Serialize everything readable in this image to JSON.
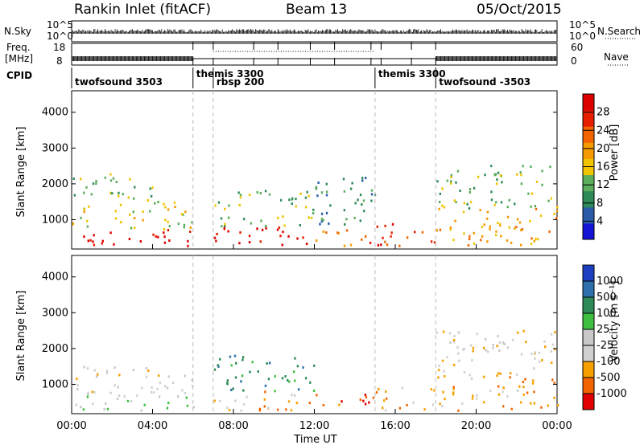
{
  "header": {
    "station": "Rankin Inlet (fitACF)",
    "beam": "Beam 13",
    "date": "05/Oct/2015"
  },
  "status_panel": {
    "nsky_label": "N.Sky",
    "nsky_ticks": [
      "10^5",
      "10^0"
    ],
    "nsearch_label": "N.Search",
    "freq_label": "Freq.",
    "freq_unit": "[MHz]",
    "freq_ticks": [
      "18",
      "8"
    ],
    "nave_label": "Nave",
    "nave_ticks": [
      "60",
      "0"
    ],
    "cpid_label": "CPID",
    "cpid_segments": [
      {
        "start": 0.0,
        "end": 6.0,
        "label": "twofsound 3503"
      },
      {
        "start": 6.0,
        "end": 7.0,
        "label": "themis 3300"
      },
      {
        "start": 7.0,
        "end": 15.0,
        "label": "rbsp 200"
      },
      {
        "start": 15.0,
        "end": 18.0,
        "label": "themis 3300"
      },
      {
        "start": 18.0,
        "end": 24.0,
        "label": "twofsound -3503"
      }
    ]
  },
  "colors": {
    "power": [
      "#1414d4",
      "#2a5caa",
      "#2e8b57",
      "#5cae5c",
      "#f0c400",
      "#f59a00",
      "#f26400",
      "#e61e00",
      "#dd0000"
    ],
    "velocity": [
      "#e00000",
      "#f26400",
      "#f5a000",
      "#d0d0d0",
      "#c8c8c8",
      "#3fbf3f",
      "#2e8b57",
      "#2e6fad",
      "#1e3fbf"
    ]
  },
  "chart_data": [
    {
      "type": "heatmap",
      "panel": "power",
      "ylabel": "Slant Range [km]",
      "xlabel": "Time UT",
      "xlim": [
        0,
        24
      ],
      "ylim": [
        180,
        4600
      ],
      "yticks": [
        "1000",
        "2000",
        "3000",
        "4000"
      ],
      "xticks": [
        "00:00",
        "04:00",
        "08:00",
        "12:00",
        "16:00",
        "20:00",
        "00:00"
      ],
      "colorbar": {
        "label": "Power [dB]",
        "ticks": [
          "4",
          "8",
          "12",
          "16",
          "20",
          "24",
          "28"
        ]
      },
      "regions": [
        {
          "t0": 0.0,
          "t1": 6.0,
          "r0": 250,
          "r1": 700,
          "level": 8
        },
        {
          "t0": 0.0,
          "t1": 6.0,
          "r0": 700,
          "r1": 1500,
          "level": 4
        },
        {
          "t0": 0.0,
          "t1": 4.0,
          "r0": 1500,
          "r1": 2300,
          "level": 3
        },
        {
          "t0": 7.0,
          "t1": 12.0,
          "r0": 250,
          "r1": 800,
          "level": 8
        },
        {
          "t0": 7.0,
          "t1": 12.0,
          "r0": 800,
          "r1": 1800,
          "level": 3
        },
        {
          "t0": 12.0,
          "t1": 15.0,
          "r0": 250,
          "r1": 700,
          "level": 6
        },
        {
          "t0": 12.0,
          "t1": 15.0,
          "r0": 700,
          "r1": 2200,
          "level": 2
        },
        {
          "t0": 15.0,
          "t1": 18.0,
          "r0": 250,
          "r1": 900,
          "level": 7
        },
        {
          "t0": 18.0,
          "t1": 24.0,
          "r0": 250,
          "r1": 1300,
          "level": 5
        },
        {
          "t0": 18.0,
          "t1": 24.0,
          "r0": 1300,
          "r1": 2500,
          "level": 3
        }
      ],
      "markers": [
        6.0,
        7.0,
        15.0,
        18.0
      ]
    },
    {
      "type": "heatmap",
      "panel": "velocity",
      "ylabel": "Slant Range [km]",
      "xlabel": "Time UT",
      "xlim": [
        0,
        24
      ],
      "ylim": [
        180,
        4600
      ],
      "yticks": [
        "1000",
        "2000",
        "3000",
        "4000"
      ],
      "xticks": [
        "00:00",
        "04:00",
        "08:00",
        "12:00",
        "16:00",
        "20:00",
        "00:00"
      ],
      "colorbar": {
        "label": "Velocity [m s⁻¹]",
        "ticks": [
          "1000",
          "500",
          "100",
          "25",
          "-25",
          "-100",
          "-500",
          "-1000"
        ]
      },
      "regions": [
        {
          "t0": 0.0,
          "t1": 6.0,
          "r0": 250,
          "r1": 700,
          "level": 4
        },
        {
          "t0": 0.0,
          "t1": 6.0,
          "r0": 700,
          "r1": 1500,
          "level": 3
        },
        {
          "t0": 7.0,
          "t1": 12.0,
          "r0": 250,
          "r1": 800,
          "level": 2
        },
        {
          "t0": 7.0,
          "t1": 12.0,
          "r0": 800,
          "r1": 1800,
          "level": 6
        },
        {
          "t0": 12.0,
          "t1": 15.0,
          "r0": 250,
          "r1": 700,
          "level": 1
        },
        {
          "t0": 15.0,
          "t1": 18.0,
          "r0": 250,
          "r1": 900,
          "level": 2
        },
        {
          "t0": 18.0,
          "t1": 24.0,
          "r0": 250,
          "r1": 1300,
          "level": 2
        },
        {
          "t0": 18.0,
          "t1": 24.0,
          "r0": 1300,
          "r1": 2500,
          "level": 3
        }
      ],
      "markers": [
        6.0,
        7.0,
        15.0,
        18.0
      ]
    }
  ]
}
